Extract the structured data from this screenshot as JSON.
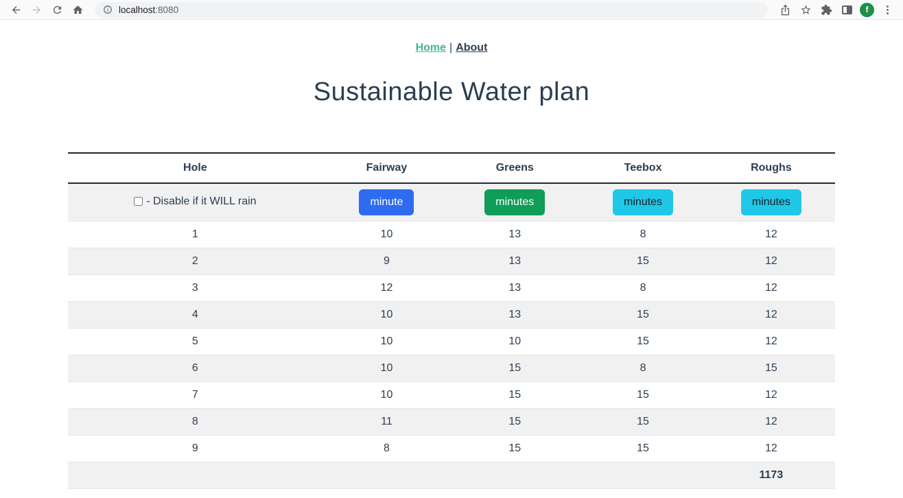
{
  "browser": {
    "url": {
      "host": "localhost",
      "port": ":8080"
    },
    "avatar_letter": "f"
  },
  "nav": {
    "home_label": "Home",
    "separator": "|",
    "about_label": "About"
  },
  "page": {
    "title": "Sustainable Water plan"
  },
  "table": {
    "columns": [
      "Hole",
      "Fairway",
      "Greens",
      "Teebox",
      "Roughs"
    ],
    "controls": {
      "checkbox_label": "- Disable if it WILL rain",
      "checkbox_checked": false,
      "buttons": [
        {
          "label": "minute",
          "bg": "#2d6cf0",
          "fg": "#ffffff"
        },
        {
          "label": "minutes",
          "bg": "#0f9d58",
          "fg": "#ffffff"
        },
        {
          "label": "minutes",
          "bg": "#1fc8e8",
          "fg": "#1b1e21"
        },
        {
          "label": "minutes",
          "bg": "#1fc8e8",
          "fg": "#1b1e21"
        }
      ]
    },
    "rows": [
      [
        "1",
        "10",
        "13",
        "8",
        "12"
      ],
      [
        "2",
        "9",
        "13",
        "15",
        "12"
      ],
      [
        "3",
        "12",
        "13",
        "8",
        "12"
      ],
      [
        "4",
        "10",
        "13",
        "15",
        "12"
      ],
      [
        "5",
        "10",
        "10",
        "15",
        "12"
      ],
      [
        "6",
        "10",
        "15",
        "8",
        "15"
      ],
      [
        "7",
        "10",
        "15",
        "15",
        "12"
      ],
      [
        "8",
        "11",
        "15",
        "15",
        "12"
      ],
      [
        "9",
        "8",
        "15",
        "15",
        "12"
      ]
    ],
    "totals": [
      "",
      "",
      "",
      "",
      "1173"
    ]
  },
  "colors": {
    "accent_green": "#42b983",
    "heading_text": "#2c3e50",
    "row_stripe": "#f1f1f2",
    "btn_primary": "#2d6cf0",
    "btn_success": "#0f9d58",
    "btn_info": "#1fc8e8",
    "avatar_bg": "#1a9049"
  }
}
